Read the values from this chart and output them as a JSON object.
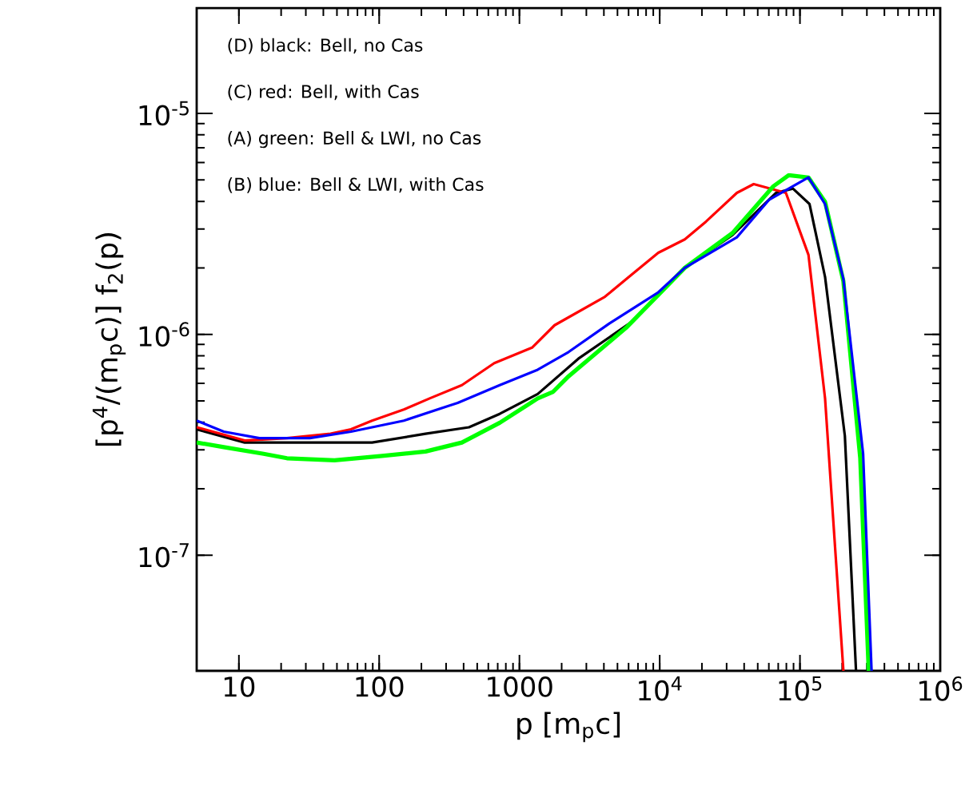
{
  "chart_data": {
    "type": "line",
    "xlabel": "p [m$_{p}$c]",
    "ylabel": "[p$^{4}$/(m$_{p}$c)] f$_{2}$(p)",
    "log": "xy",
    "xlim": [
      5,
      1000000
    ],
    "ylim": [
      3e-08,
      3e-05
    ],
    "xticks": [
      10,
      100,
      1000,
      {
        "value": 10000,
        "label": "10$^{4}$"
      },
      {
        "value": 100000,
        "label": "10$^{5}$"
      },
      {
        "value": 1000000,
        "label": "10$^{6}$"
      }
    ],
    "yticks": [
      {
        "value": 1e-07,
        "label": "10$^{-7}$"
      },
      {
        "value": 1e-06,
        "label": "10$^{-6}$"
      },
      {
        "value": 1e-05,
        "label": "10$^{-5}$"
      }
    ],
    "annotations": [
      "(D) black: Bell, no Cas",
      "(C) red: Bell, with Cas",
      "(A) green: Bell & LWI, no Cas",
      "(B) blue: Bell & LWI, with Cas"
    ],
    "grid": false,
    "marker": "none",
    "line_style": "solid",
    "series": [
      {
        "color": "#000000",
        "x": [
          5,
          11,
          45,
          89,
          214,
          437,
          724,
          1350,
          2630,
          6460,
          15100,
          33100,
          67600,
          89100,
          117000,
          151000,
          209000,
          251000
        ],
        "values": [
          3.72e-07,
          3.24e-07,
          3.24e-07,
          3.24e-07,
          3.55e-07,
          3.8e-07,
          4.37e-07,
          5.37e-07,
          7.76e-07,
          1.15e-06,
          2e-06,
          2.82e-06,
          4.37e-06,
          4.57e-06,
          3.89e-06,
          1.82e-06,
          3.47e-07,
          3e-08
        ]
      },
      {
        "color": "#ff0000",
        "x": [
          5,
          11,
          22,
          45,
          63,
          89,
          150,
          229,
          389,
          661,
          1230,
          1780,
          4070,
          6030,
          9770,
          15100,
          21400,
          35500,
          46800,
          79400,
          115000,
          151000,
          204000
        ],
        "values": [
          3.8e-07,
          3.31e-07,
          3.39e-07,
          3.55e-07,
          3.72e-07,
          4.07e-07,
          4.57e-07,
          5.13e-07,
          5.89e-07,
          7.41e-07,
          8.71e-07,
          1.1e-06,
          1.48e-06,
          1.82e-06,
          2.34e-06,
          2.69e-06,
          3.24e-06,
          4.37e-06,
          4.79e-06,
          4.37e-06,
          2.29e-06,
          5.13e-07,
          3e-08
        ]
      },
      {
        "color": "#00ff00",
        "x": [
          5,
          7.8,
          15,
          22,
          48,
          105,
          214,
          389,
          724,
          1350,
          1740,
          2240,
          5750,
          15100,
          33100,
          64600,
          83200,
          115000,
          151000,
          204000,
          269000,
          309000
        ],
        "values": [
          3.24e-07,
          3.09e-07,
          2.88e-07,
          2.75e-07,
          2.69e-07,
          2.82e-07,
          2.95e-07,
          3.24e-07,
          3.98e-07,
          5.13e-07,
          5.5e-07,
          6.46e-07,
          1.07e-06,
          2e-06,
          2.88e-06,
          4.68e-06,
          5.25e-06,
          5.13e-06,
          3.98e-06,
          1.74e-06,
          2.75e-07,
          3e-08
        ]
      },
      {
        "color": "#0000ff",
        "x": [
          5,
          7.8,
          14,
          32,
          63,
          150,
          363,
          724,
          1350,
          2240,
          4370,
          9770,
          15100,
          35500,
          60300,
          115000,
          151000,
          204000,
          282000,
          324000
        ],
        "values": [
          4.07e-07,
          3.63e-07,
          3.39e-07,
          3.39e-07,
          3.63e-07,
          4.07e-07,
          4.9e-07,
          5.89e-07,
          6.92e-07,
          8.32e-07,
          1.12e-06,
          1.55e-06,
          2e-06,
          2.75e-06,
          4.07e-06,
          5.13e-06,
          3.89e-06,
          1.78e-06,
          2.88e-07,
          3e-08
        ]
      }
    ]
  }
}
